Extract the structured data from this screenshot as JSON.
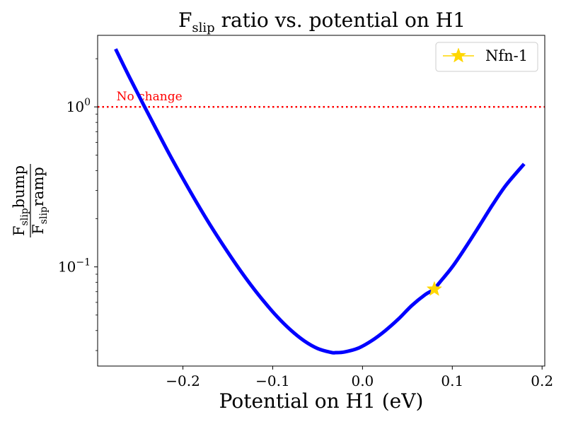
{
  "chart_data": {
    "type": "line",
    "title": {
      "main": "F",
      "sub": "slip",
      "rest": " ratio vs. potential on H1"
    },
    "xlabel": "Potential on H1 (eV)",
    "ylabel": {
      "numerator": {
        "main": "F",
        "sub": "slip",
        "rest": "bump"
      },
      "denominator": {
        "main": "F",
        "sub": "slip",
        "rest": "ramp"
      }
    },
    "xlim": [
      -0.295,
      0.203
    ],
    "ylim": [
      0.024,
      2.8
    ],
    "yscale": "log",
    "xticks": [
      {
        "value": -0.2,
        "label": "−0.2"
      },
      {
        "value": -0.1,
        "label": "−0.1"
      },
      {
        "value": 0.0,
        "label": "0.0"
      },
      {
        "value": 0.1,
        "label": "0.1"
      },
      {
        "value": 0.2,
        "label": "0.2"
      }
    ],
    "yticks": [
      {
        "value": 1,
        "base": "10",
        "exp": "0"
      },
      {
        "value": 0.1,
        "base": "10",
        "exp": "−1"
      }
    ],
    "grid": false,
    "legend": {
      "position": "top-right",
      "entries": [
        {
          "label": "Nfn-1",
          "color": "#FFD700",
          "marker": "star"
        }
      ]
    },
    "series": [
      {
        "color": "#0000FF",
        "x": [
          -0.275,
          -0.26,
          -0.245,
          -0.23,
          -0.215,
          -0.2,
          -0.185,
          -0.17,
          -0.155,
          -0.14,
          -0.125,
          -0.11,
          -0.095,
          -0.08,
          -0.065,
          -0.05,
          -0.035,
          -0.03,
          -0.02,
          -0.005,
          0.01,
          0.025,
          0.04,
          0.055,
          0.07,
          0.08,
          0.085,
          0.1,
          0.115,
          0.13,
          0.145,
          0.16,
          0.18
        ],
        "y": [
          2.3,
          1.55,
          1.06,
          0.73,
          0.505,
          0.356,
          0.254,
          0.184,
          0.136,
          0.102,
          0.078,
          0.061,
          0.0488,
          0.0403,
          0.0345,
          0.0309,
          0.0292,
          0.0291,
          0.0294,
          0.031,
          0.0345,
          0.0398,
          0.0472,
          0.0574,
          0.0672,
          0.0725,
          0.0788,
          0.1,
          0.133,
          0.18,
          0.245,
          0.325,
          0.44
        ]
      }
    ],
    "highlight_point": {
      "label": "Nfn-1",
      "x": 0.08,
      "y": 0.0725,
      "color": "#FFD700",
      "marker": "star"
    },
    "reference_line": {
      "y": 1,
      "color": "#FF0000",
      "style": "dotted",
      "label": "No change"
    }
  }
}
